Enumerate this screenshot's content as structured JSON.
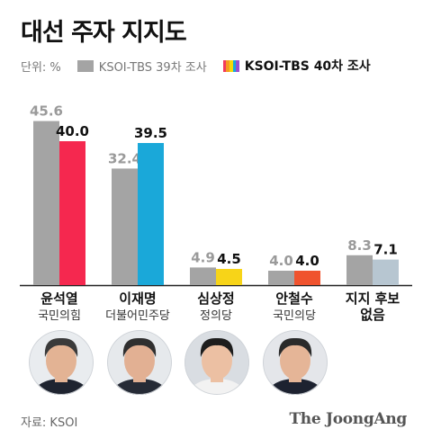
{
  "header": {
    "title": "대선 주자 지지도"
  },
  "legend": {
    "unit": "단위: %",
    "series_39": "KSOI-TBS 39차 조사",
    "series_40": "KSOI-TBS 40차 조사",
    "multicolor": [
      "#f23a5e",
      "#f59a23",
      "#f5d90a",
      "#18aadb",
      "#9a4fd1"
    ]
  },
  "footer": {
    "source": "자료: KSOI",
    "brand": "The JoongAng"
  },
  "chart_data": {
    "type": "bar",
    "title": "대선 주자 지지도",
    "unit": "%",
    "categories": [
      "윤석열",
      "이재명",
      "심상정",
      "안철수",
      "지지 후보 없음"
    ],
    "parties": [
      "국민의힘",
      "더불어민주당",
      "정의당",
      "국민의당",
      ""
    ],
    "ylim": [
      0,
      50
    ],
    "grid": false,
    "legend_position": "top",
    "series": [
      {
        "name": "KSOI-TBS 39차 조사",
        "values": [
          45.6,
          32.4,
          4.9,
          4.0,
          8.3
        ],
        "color": "#a4a4a4"
      },
      {
        "name": "KSOI-TBS 40차 조사",
        "values": [
          40.0,
          39.5,
          4.5,
          4.0,
          7.1
        ],
        "colors": [
          "#f5284f",
          "#1aa8d9",
          "#f7d418",
          "#f0532e",
          "#b7c6d1"
        ]
      }
    ]
  },
  "photos": [
    {
      "name": "윤석열",
      "skin": "#e3b394",
      "hair": "#3a3a3a",
      "suit": "#1f2430",
      "bg": "#e9ecef"
    },
    {
      "name": "이재명",
      "skin": "#e2b093",
      "hair": "#2f2f2f",
      "suit": "#262b36",
      "bg": "#e6e9ec"
    },
    {
      "name": "심상정",
      "skin": "#ecc0a3",
      "hair": "#1d1d1d",
      "suit": "#f2f2f2",
      "bg": "#d9dde2"
    },
    {
      "name": "안철수",
      "skin": "#e5b597",
      "hair": "#2a2a2a",
      "suit": "#1d2230",
      "bg": "#e4e6ea"
    }
  ]
}
